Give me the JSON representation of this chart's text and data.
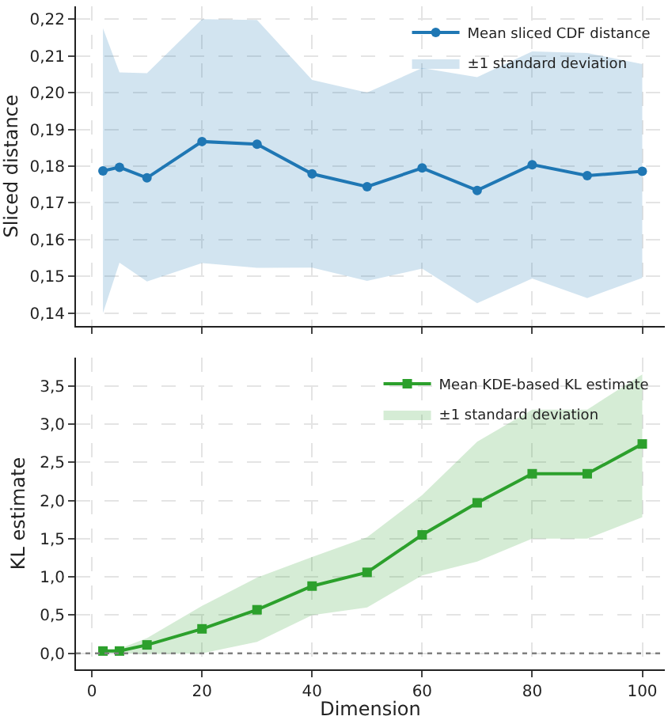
{
  "chart_data": [
    {
      "type": "line",
      "ylabel": "Sliced distance",
      "x": [
        2,
        5,
        10,
        20,
        30,
        40,
        50,
        60,
        70,
        80,
        90,
        100
      ],
      "series": [
        {
          "name": "Mean sliced CDF distance",
          "color": "#1f77b4",
          "values": [
            0.1787,
            0.1797,
            0.1768,
            0.1867,
            0.186,
            0.1779,
            0.1744,
            0.1795,
            0.1734,
            0.1804,
            0.1774,
            0.1786
          ],
          "lower": [
            0.14,
            0.1537,
            0.1486,
            0.1536,
            0.1523,
            0.1524,
            0.1488,
            0.1521,
            0.1427,
            0.1494,
            0.1441,
            0.1496
          ],
          "upper": [
            0.2175,
            0.2055,
            0.2053,
            0.22,
            0.2198,
            0.2035,
            0.2,
            0.2067,
            0.2042,
            0.2112,
            0.2108,
            0.2078
          ]
        }
      ],
      "annotations": [
        "±1 standard deviation"
      ],
      "xlim": [
        -2.9,
        104.1
      ],
      "xticks": [
        0,
        20,
        40,
        60,
        80,
        100
      ],
      "ylim": [
        0.1365,
        0.2235
      ],
      "yticks": [
        {
          "value": 0.14,
          "label": "0,14"
        },
        {
          "value": 0.15,
          "label": "0,15"
        },
        {
          "value": 0.16,
          "label": "0,16"
        },
        {
          "value": 0.17,
          "label": "0,17"
        },
        {
          "value": 0.18,
          "label": "0,18"
        },
        {
          "value": 0.19,
          "label": "0,19"
        },
        {
          "value": 0.2,
          "label": "0,20"
        },
        {
          "value": 0.21,
          "label": "0,21"
        },
        {
          "value": 0.22,
          "label": "0,22"
        }
      ],
      "tick_labels": "y",
      "grid": true,
      "legend": "top right",
      "marker": "circle",
      "line_style": "solid"
    },
    {
      "type": "line",
      "xlabel": "Dimension",
      "ylabel": "KL estimate",
      "x": [
        2,
        5,
        10,
        20,
        30,
        40,
        50,
        60,
        70,
        80,
        90,
        100
      ],
      "series": [
        {
          "name": "Mean KDE-based KL estimate",
          "color": "#2ca02c",
          "values": [
            0.03,
            0.03,
            0.11,
            0.32,
            0.57,
            0.88,
            1.06,
            1.55,
            1.97,
            2.35,
            2.35,
            2.74
          ],
          "lower": [
            0.01,
            0.0,
            -0.01,
            0.0,
            0.15,
            0.5,
            0.6,
            1.02,
            1.2,
            1.5,
            1.5,
            1.78
          ],
          "upper": [
            0.05,
            0.06,
            0.2,
            0.62,
            0.99,
            1.26,
            1.52,
            2.07,
            2.77,
            3.19,
            3.19,
            3.65
          ]
        }
      ],
      "annotations": [
        "±1 standard deviation"
      ],
      "xlim": [
        -2.9,
        104.1
      ],
      "xticks": [
        0,
        20,
        40,
        60,
        80,
        100
      ],
      "ylim": [
        -0.21,
        3.87
      ],
      "yticks": [
        {
          "value": 0,
          "label": "0,0"
        },
        {
          "value": 0.5,
          "label": "0,5"
        },
        {
          "value": 1,
          "label": "1,0"
        },
        {
          "value": 1.5,
          "label": "1,5"
        },
        {
          "value": 2,
          "label": "2,0"
        },
        {
          "value": 2.5,
          "label": "2,5"
        },
        {
          "value": 3,
          "label": "3,0"
        },
        {
          "value": 3.5,
          "label": "3,5"
        }
      ],
      "ref_lines": [
        {
          "axis": "y",
          "value": 0,
          "color": "#808080",
          "line_style": "dotted"
        }
      ],
      "grid": true,
      "legend": "top right",
      "marker": "square",
      "line_style": "solid"
    }
  ]
}
